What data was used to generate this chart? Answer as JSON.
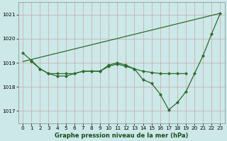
{
  "line_diagonal": {
    "x": [
      0,
      23
    ],
    "y": [
      1019.05,
      1021.05
    ],
    "has_markers": false
  },
  "line_main": {
    "x": [
      0,
      1,
      2,
      3,
      4,
      5,
      6,
      7,
      8,
      9,
      10,
      11,
      12,
      13,
      14,
      15,
      16,
      17,
      18,
      19,
      20,
      21,
      22,
      23
    ],
    "y": [
      1019.4,
      1019.1,
      1018.75,
      1018.55,
      1018.55,
      1018.55,
      1018.55,
      1018.65,
      1018.65,
      1018.65,
      1018.9,
      1019.0,
      1018.9,
      1018.75,
      1018.3,
      1018.15,
      1017.7,
      1017.05,
      1017.35,
      1017.8,
      1018.55,
      1019.3,
      1020.2,
      1021.05
    ],
    "has_markers": true
  },
  "line_flat": {
    "x": [
      1,
      2,
      3,
      4,
      5,
      6,
      7,
      8,
      9,
      10,
      11,
      12,
      13,
      14,
      15,
      16,
      17,
      18,
      19
    ],
    "y": [
      1019.05,
      1018.75,
      1018.55,
      1018.45,
      1018.45,
      1018.55,
      1018.65,
      1018.65,
      1018.65,
      1018.85,
      1018.95,
      1018.85,
      1018.75,
      1018.65,
      1018.6,
      1018.55,
      1018.55,
      1018.55,
      1018.55
    ],
    "has_markers": true
  },
  "color": "#2d6a2d",
  "bg_color": "#cce8e8",
  "grid_color_major": "#c8a8a8",
  "grid_color_minor": "#ddc8c8",
  "marker": "D",
  "marker_size": 2.0,
  "linewidth": 0.9,
  "xlabel": "Graphe pression niveau de la mer (hPa)",
  "xlim": [
    -0.5,
    23.5
  ],
  "ylim": [
    1016.5,
    1021.5
  ],
  "yticks": [
    1017,
    1018,
    1019,
    1020,
    1021
  ],
  "xticks": [
    0,
    1,
    2,
    3,
    4,
    5,
    6,
    7,
    8,
    9,
    10,
    11,
    12,
    13,
    14,
    15,
    16,
    17,
    18,
    19,
    20,
    21,
    22,
    23
  ],
  "xlabel_fontsize": 6.0,
  "tick_fontsize": 5.2
}
